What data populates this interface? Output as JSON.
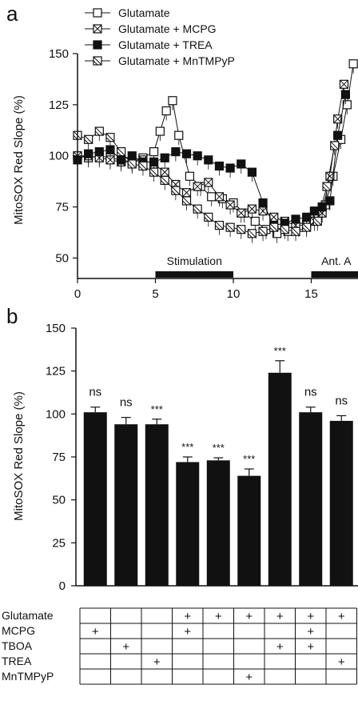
{
  "chart_data": [
    {
      "panel": "a",
      "type": "line",
      "ylabel": "MitoSOX Red Slope (%)",
      "xlim": [
        0,
        18
      ],
      "ylim": [
        40,
        150
      ],
      "xticks": [
        0,
        5,
        10,
        15
      ],
      "yticks": [
        50,
        75,
        100,
        125,
        150
      ],
      "legend": [
        {
          "name": "Glutamate",
          "marker": "open-square"
        },
        {
          "name": "Glutamate + MCPG",
          "marker": "crossed-square"
        },
        {
          "name": "Glutamate + TREA",
          "marker": "filled-square"
        },
        {
          "name": "Glutamate + MnTMPyP",
          "marker": "slashed-square"
        }
      ],
      "bars": [
        {
          "label": "Stimulation",
          "x": [
            5,
            10
          ]
        },
        {
          "label": "Ant. A",
          "x": [
            15,
            18
          ]
        }
      ],
      "series": [
        {
          "name": "Glutamate",
          "marker": "open-square",
          "x": [
            0,
            0.7,
            1.4,
            2.1,
            2.8,
            3.5,
            4.2,
            4.9,
            5.3,
            5.7,
            6.1,
            6.5,
            7.2,
            7.9,
            8.6,
            9.3,
            10,
            10.7,
            11.4,
            12.1,
            12.8,
            13.5,
            14.2,
            14.9,
            15.4,
            15.9,
            16.4,
            16.9,
            17.3,
            17.7
          ],
          "y": [
            100,
            99,
            100,
            99,
            98,
            97,
            99,
            102,
            112,
            122,
            127,
            110,
            90,
            85,
            80,
            79,
            77,
            72,
            68,
            64,
            62,
            63,
            65,
            68,
            70,
            76,
            90,
            108,
            125,
            145
          ]
        },
        {
          "name": "Glutamate + MCPG",
          "marker": "crossed-square",
          "x": [
            0,
            0.7,
            1.4,
            2.1,
            2.8,
            3.5,
            4.2,
            4.9,
            5.6,
            6.3,
            7.0,
            7.7,
            8.4,
            9.1,
            9.8,
            10.5,
            11.2,
            11.9,
            12.6,
            13.3,
            14.0,
            14.7,
            15.2,
            15.7,
            16.2,
            16.7,
            17.1
          ],
          "y": [
            100,
            100,
            99,
            98,
            97,
            97,
            98,
            96,
            92,
            86,
            82,
            85,
            87,
            80,
            76,
            72,
            74,
            73,
            70,
            68,
            66,
            66,
            68,
            72,
            90,
            118,
            135
          ]
        },
        {
          "name": "Glutamate + TREA",
          "marker": "filled-square",
          "x": [
            0,
            0.7,
            1.4,
            2.1,
            2.8,
            3.5,
            4.2,
            4.9,
            5.6,
            6.3,
            7.0,
            7.7,
            8.4,
            9.1,
            9.8,
            10.5,
            11.2,
            11.9,
            12.6,
            13.3,
            14.0,
            14.7,
            15.2,
            15.7,
            16.2,
            16.7,
            17.2
          ],
          "y": [
            98,
            101,
            102,
            103,
            98,
            100,
            97,
            97,
            99,
            102,
            101,
            100,
            98,
            95,
            94,
            96,
            92,
            77,
            66,
            67,
            69,
            70,
            73,
            75,
            78,
            110,
            130
          ]
        },
        {
          "name": "Glutamate + MnTMPyP",
          "marker": "slashed-square",
          "x": [
            0,
            0.7,
            1.4,
            2.1,
            2.8,
            3.5,
            4.2,
            4.9,
            5.6,
            6.3,
            7.0,
            7.7,
            8.4,
            9.1,
            9.8,
            10.5,
            11.2,
            11.9,
            12.6,
            13.3,
            14.0,
            14.7,
            15.4,
            16.0,
            16.5
          ],
          "y": [
            110,
            108,
            112,
            109,
            102,
            96,
            95,
            92,
            88,
            83,
            78,
            74,
            70,
            66,
            65,
            64,
            62,
            63,
            65,
            64,
            63,
            65,
            68,
            85,
            105
          ]
        }
      ]
    },
    {
      "panel": "b",
      "type": "bar",
      "ylabel": "MitoSOX Red Slope (%)",
      "ylim": [
        0,
        150
      ],
      "yticks": [
        0,
        25,
        50,
        75,
        100,
        125,
        150
      ],
      "values": [
        101,
        94,
        94,
        72,
        73,
        64,
        124,
        101,
        96
      ],
      "errors": [
        3,
        4,
        3,
        3,
        1.5,
        4,
        7,
        3,
        3
      ],
      "significance": [
        "ns",
        "ns",
        "***",
        "***",
        "***",
        "***",
        "***",
        "ns",
        "ns"
      ]
    }
  ],
  "panel_labels": {
    "a": "a",
    "b": "b"
  },
  "treatment_table": {
    "rows": [
      "Glutamate",
      "MCPG",
      "TBOA",
      "TREA",
      "MnTMPyP"
    ],
    "mark": "+",
    "matrix": [
      [
        false,
        false,
        false,
        true,
        true,
        true,
        true,
        true,
        true
      ],
      [
        true,
        false,
        false,
        true,
        false,
        false,
        false,
        true,
        false
      ],
      [
        false,
        true,
        false,
        false,
        false,
        false,
        true,
        true,
        false
      ],
      [
        false,
        false,
        true,
        false,
        false,
        false,
        false,
        false,
        true
      ],
      [
        false,
        false,
        false,
        false,
        false,
        true,
        false,
        false,
        false
      ]
    ]
  }
}
